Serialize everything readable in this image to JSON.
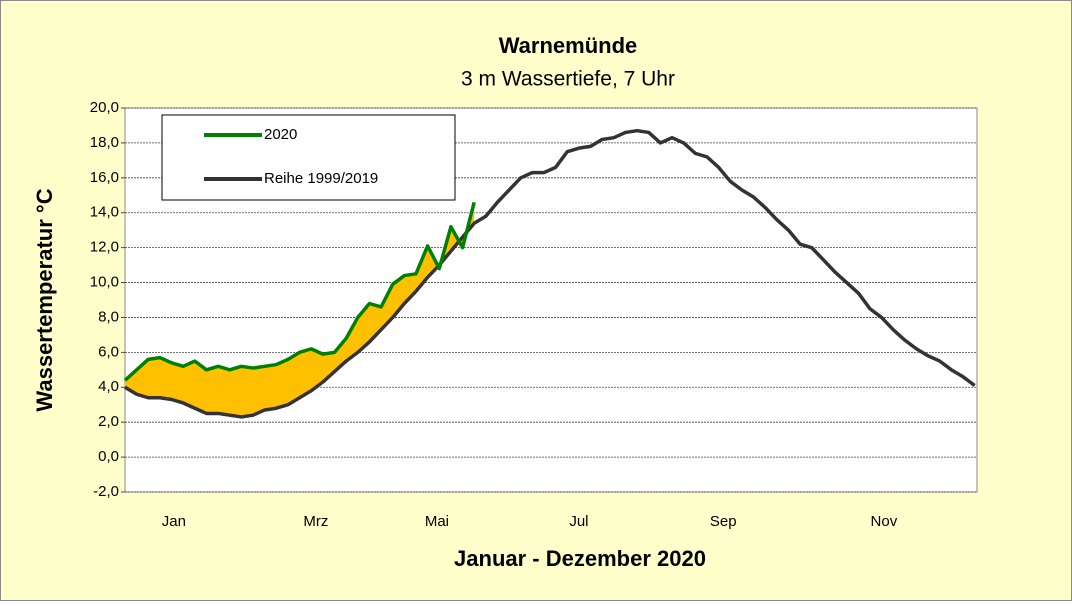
{
  "chart_data": {
    "type": "line",
    "title": "Warnemünde",
    "subtitle": "3 m Wassertiefe, 7 Uhr",
    "y_label": "Wassertemperatur °C",
    "x_label": "Januar - Dezember 2020",
    "xlim": [
      0,
      366
    ],
    "xticks": [
      {
        "value": 21,
        "label": "Jan"
      },
      {
        "value": 82,
        "label": "Mrz"
      },
      {
        "value": 134,
        "label": "Mai"
      },
      {
        "value": 195,
        "label": "Jul"
      },
      {
        "value": 257,
        "label": "Sep"
      },
      {
        "value": 326,
        "label": "Nov"
      }
    ],
    "ylim": [
      -2,
      20
    ],
    "yticks": [
      {
        "value": -2,
        "label": "-2,0"
      },
      {
        "value": 0,
        "label": "0,0"
      },
      {
        "value": 2,
        "label": "2,0"
      },
      {
        "value": 4,
        "label": "4,0"
      },
      {
        "value": 6,
        "label": "6,0"
      },
      {
        "value": 8,
        "label": "8,0"
      },
      {
        "value": 10,
        "label": "10,0"
      },
      {
        "value": 12,
        "label": "12,0"
      },
      {
        "value": 14,
        "label": "14,0"
      },
      {
        "value": 16,
        "label": "16,0"
      },
      {
        "value": 18,
        "label": "18,0"
      },
      {
        "value": 20,
        "label": "20,0"
      }
    ],
    "grid": true,
    "legend": "upper left",
    "fill_color": "#ffc000",
    "x": [
      0,
      5,
      10,
      15,
      20,
      25,
      30,
      35,
      40,
      45,
      50,
      55,
      60,
      65,
      70,
      75,
      80,
      85,
      90,
      95,
      100,
      105,
      110,
      115,
      120,
      125,
      130,
      135,
      140,
      145,
      150,
      155,
      160,
      165,
      170,
      175,
      180,
      185,
      190,
      195,
      200,
      205,
      210,
      215,
      220,
      225,
      230,
      235,
      240,
      245,
      250,
      255,
      260,
      265,
      270,
      275,
      280,
      285,
      290,
      295,
      300,
      305,
      310,
      315,
      320,
      325,
      330,
      335,
      340,
      345,
      350,
      355,
      360,
      365
    ],
    "series": [
      {
        "name": "2020",
        "color": "#008000",
        "values": [
          4.4,
          5.0,
          5.6,
          5.7,
          5.4,
          5.2,
          5.5,
          5.0,
          5.2,
          5.0,
          5.2,
          5.1,
          5.2,
          5.3,
          5.6,
          6.0,
          6.2,
          5.9,
          6.0,
          6.8,
          8.0,
          8.8,
          8.6,
          9.9,
          10.4,
          10.5,
          12.1,
          10.8,
          13.2,
          12.0,
          14.6,
          null,
          null,
          null,
          null,
          null,
          null,
          null,
          null,
          null,
          null,
          null,
          null,
          null,
          null,
          null,
          null,
          null,
          null,
          null,
          null,
          null,
          null,
          null,
          null,
          null,
          null,
          null,
          null,
          null,
          null,
          null,
          null,
          null,
          null,
          null,
          null,
          null,
          null,
          null,
          null,
          null,
          null,
          null
        ]
      },
      {
        "name": "Reihe 1999/2019",
        "color": "#333333",
        "values": [
          4.0,
          3.6,
          3.4,
          3.4,
          3.3,
          3.1,
          2.8,
          2.5,
          2.5,
          2.4,
          2.3,
          2.4,
          2.7,
          2.8,
          3.0,
          3.4,
          3.8,
          4.3,
          4.9,
          5.5,
          6.0,
          6.6,
          7.3,
          8.0,
          8.8,
          9.5,
          10.3,
          11.0,
          11.8,
          12.6,
          13.4,
          13.8,
          14.6,
          15.3,
          16.0,
          16.3,
          16.3,
          16.6,
          17.5,
          17.7,
          17.8,
          18.2,
          18.3,
          18.6,
          18.7,
          18.6,
          18.0,
          18.3,
          18.0,
          17.4,
          17.2,
          16.6,
          15.8,
          15.3,
          14.9,
          14.3,
          13.6,
          13.0,
          12.2,
          12.0,
          11.3,
          10.6,
          10.0,
          9.4,
          8.5,
          8.0,
          7.3,
          6.7,
          6.2,
          5.8,
          5.5,
          5.0,
          4.6,
          4.1
        ]
      }
    ]
  }
}
